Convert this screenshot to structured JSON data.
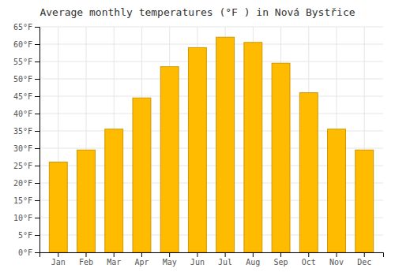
{
  "chart_data": {
    "type": "bar",
    "title": "Average monthly temperatures (°F ) in Nová Bystřice",
    "categories": [
      "Jan",
      "Feb",
      "Mar",
      "Apr",
      "May",
      "Jun",
      "Jul",
      "Aug",
      "Sep",
      "Oct",
      "Nov",
      "Dec"
    ],
    "values": [
      26,
      29.5,
      35.5,
      44.5,
      53.5,
      59,
      62,
      60.5,
      54.5,
      46,
      35.5,
      29.5
    ],
    "color": "#FFBB00",
    "ylim": [
      0,
      65
    ],
    "yticks": [
      {
        "value": 0,
        "label": "0°F"
      },
      {
        "value": 5,
        "label": "5°F"
      },
      {
        "value": 10,
        "label": "10°F"
      },
      {
        "value": 15,
        "label": "15°F"
      },
      {
        "value": 20,
        "label": "20°F"
      },
      {
        "value": 25,
        "label": "25°F"
      },
      {
        "value": 30,
        "label": "30°F"
      },
      {
        "value": 35,
        "label": "35°F"
      },
      {
        "value": 40,
        "label": "40°F"
      },
      {
        "value": 45,
        "label": "45°F"
      },
      {
        "value": 50,
        "label": "50°F"
      },
      {
        "value": 55,
        "label": "55°F"
      },
      {
        "value": 60,
        "label": "60°F"
      },
      {
        "value": 65,
        "label": "65°F"
      }
    ],
    "grid": true
  }
}
